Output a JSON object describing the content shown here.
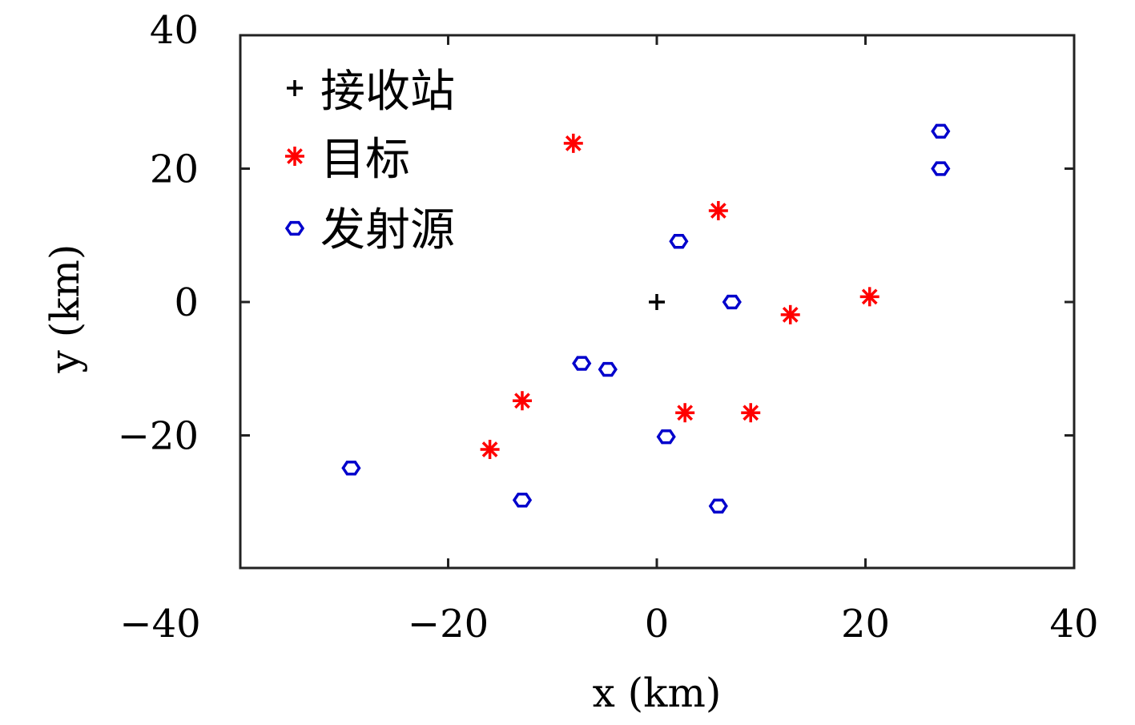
{
  "chart_data": {
    "type": "scatter",
    "xlabel": "x (km)",
    "ylabel": "y (km)",
    "xlim": [
      -40,
      40
    ],
    "ylim": [
      -40,
      40
    ],
    "xticks": [
      -40,
      -20,
      0,
      20,
      40
    ],
    "yticks": [
      -20,
      0,
      20,
      40
    ],
    "xtick_labels": [
      "−40",
      "−20",
      "0",
      "20",
      "40"
    ],
    "ytick_labels": [
      "−20",
      "0",
      "20",
      "40"
    ],
    "grid": false,
    "legend_position": "top-left",
    "series": [
      {
        "name": "接收站",
        "marker": "plus",
        "color": "#000000",
        "points": [
          [
            0,
            0
          ]
        ]
      },
      {
        "name": "目标",
        "marker": "asterisk",
        "color": "#ff0000",
        "points": [
          [
            -8,
            23.8
          ],
          [
            5.9,
            13.7
          ],
          [
            12.8,
            -1.9
          ],
          [
            20.4,
            0.8
          ],
          [
            -12.9,
            -14.8
          ],
          [
            -16,
            -22.1
          ],
          [
            2.7,
            -16.6
          ],
          [
            9,
            -16.6
          ]
        ]
      },
      {
        "name": "发射源",
        "marker": "hexagon",
        "color": "#0000cc",
        "points": [
          [
            27.2,
            25.6
          ],
          [
            27.2,
            20
          ],
          [
            2.1,
            9.1
          ],
          [
            7.2,
            0
          ],
          [
            -7.2,
            -9.2
          ],
          [
            -4.7,
            -10.1
          ],
          [
            0.9,
            -20.2
          ],
          [
            -29.3,
            -24.9
          ],
          [
            -12.9,
            -29.7
          ],
          [
            5.9,
            -30.6
          ]
        ]
      }
    ]
  }
}
